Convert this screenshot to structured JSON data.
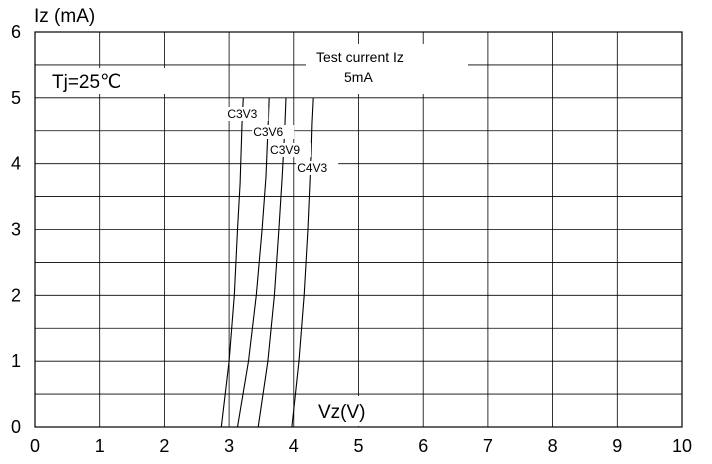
{
  "chart_data": {
    "type": "line",
    "title": "",
    "xlabel": "Vz(V)",
    "ylabel": "Iz (mA)",
    "xlim": [
      0,
      10
    ],
    "ylim": [
      0,
      6
    ],
    "x_ticks": [
      "0",
      "1",
      "2",
      "3",
      "4",
      "5",
      "6",
      "7",
      "8",
      "9",
      "10"
    ],
    "y_ticks": [
      "0",
      "1",
      "2",
      "3",
      "4",
      "5",
      "6"
    ],
    "grid": true,
    "minor_y_step": 0.5,
    "annotations": {
      "condition": "Tj=25℃",
      "test_current_line1": "Test current Iz",
      "test_current_line2": "5mA"
    },
    "series": [
      {
        "name": "C3V3",
        "x": [
          2.88,
          3.0,
          3.08,
          3.13,
          3.17,
          3.2,
          3.22
        ],
        "y": [
          0,
          1,
          2,
          3,
          3.7,
          4.6,
          5.0
        ]
      },
      {
        "name": "C3V6",
        "x": [
          3.13,
          3.3,
          3.42,
          3.51,
          3.57,
          3.6,
          3.62
        ],
        "y": [
          0,
          1,
          2,
          3,
          3.8,
          4.5,
          5.0
        ]
      },
      {
        "name": "C3V9",
        "x": [
          3.45,
          3.6,
          3.7,
          3.77,
          3.82,
          3.86,
          3.88
        ],
        "y": [
          0,
          1,
          2,
          3,
          3.8,
          4.5,
          5.0
        ]
      },
      {
        "name": "C4V3",
        "x": [
          3.97,
          4.08,
          4.16,
          4.22,
          4.26,
          4.28,
          4.3
        ],
        "y": [
          0,
          1,
          2,
          3,
          3.9,
          4.6,
          5.0
        ]
      }
    ]
  }
}
